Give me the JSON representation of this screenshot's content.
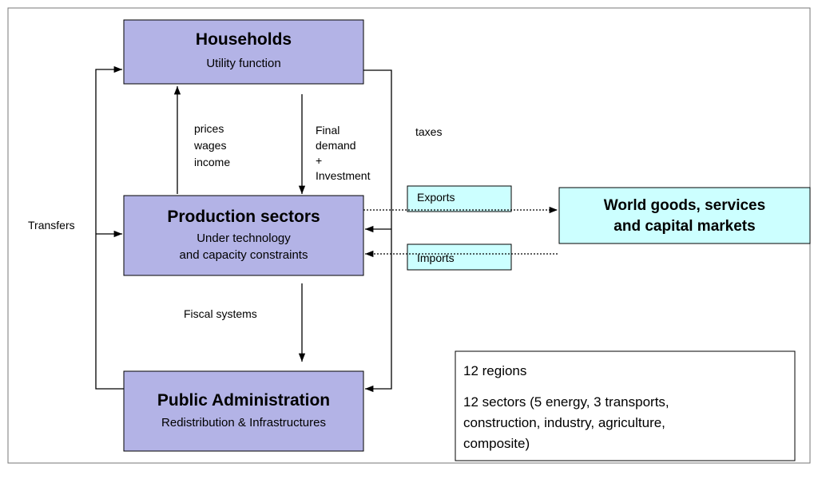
{
  "nodes": [
    {
      "title": "Households",
      "subtitle": [
        "Utility function"
      ]
    },
    {
      "title": "Production sectors",
      "subtitle": [
        "Under technology",
        "and capacity constraints"
      ]
    },
    {
      "title": "Public Administration",
      "subtitle": [
        "Redistribution & Infrastructures"
      ]
    },
    {
      "title": [
        "World goods, services",
        "and capital markets"
      ]
    }
  ],
  "edges": {
    "prices": [
      "prices",
      "wages",
      "income"
    ],
    "demand": [
      "Final",
      "demand",
      "+",
      "Investment"
    ],
    "taxes": "taxes",
    "transfers": "Transfers",
    "fiscal": "Fiscal systems",
    "exports": "Exports",
    "imports": "Imports"
  },
  "info": {
    "regions": "12 regions",
    "sectors": [
      "12 sectors (5 energy, 3 transports,",
      "construction, industry, agriculture,",
      "composite)"
    ]
  }
}
